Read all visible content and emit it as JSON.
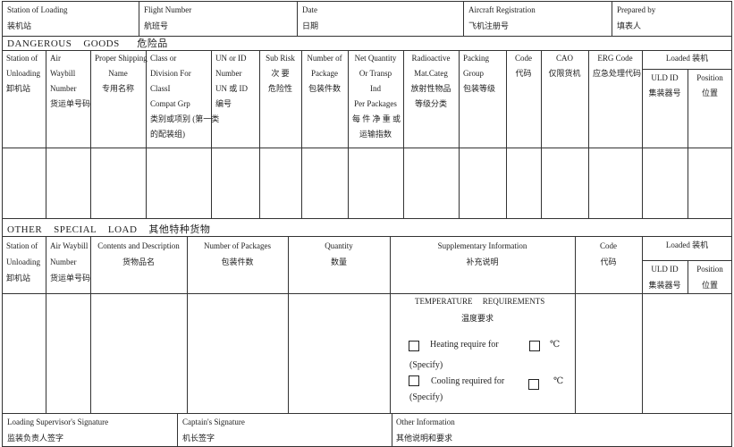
{
  "header": {
    "station_of_loading": [
      "Station of Loading",
      "装机站"
    ],
    "flight_number": [
      "Flight Number",
      "航班号"
    ],
    "date": [
      "Date",
      "日期"
    ],
    "aircraft_registration": [
      "Aircraft Registration",
      "飞机注册号"
    ],
    "prepared_by": [
      "Prepared by",
      "填表人"
    ]
  },
  "dangerous_goods": {
    "title": "DANGEROUS    GOODS      危险品",
    "columns": [
      [
        "Station of",
        "Unloading",
        "卸机站"
      ],
      [
        "Air",
        "Waybill",
        "Number",
        "货运单号码"
      ],
      [
        "Proper Shipping",
        "Name",
        "专用名称"
      ],
      [
        "Class           or",
        "Division   For",
        "ClassI",
        "Compat Grp",
        "类别或项别 (第一类",
        "的配装组)"
      ],
      [
        "UN or ID",
        "Number",
        "UN 或 ID",
        "编号"
      ],
      [
        "Sub Risk",
        "次   要",
        "危险性"
      ],
      [
        "Number of",
        "Package",
        "包装件数"
      ],
      [
        "Net  Quantity",
        "Or Transp",
        "Ind",
        "Per Packages",
        "每 件 净 重 或",
        "运输指数"
      ],
      [
        "Radioactive",
        "Mat.Categ",
        "放射性物品",
        "等级分类"
      ],
      [
        "Packing",
        "Group",
        "包装等级"
      ],
      [
        "Code",
        "代码"
      ],
      [
        "CAO",
        "仅限货机"
      ],
      [
        "ERG Code",
        "应急处理代码"
      ]
    ],
    "loaded": "Loaded   装机",
    "uld_id": [
      "ULD ID",
      "集装器号"
    ],
    "position": [
      "Position",
      "位置"
    ]
  },
  "other_special_load": {
    "title": "OTHER    SPECIAL    LOAD    其他特种货物",
    "columns": [
      [
        "Station of",
        "Unloading",
        "卸机站"
      ],
      [
        "Air Waybill",
        "Number",
        "货运单号码"
      ],
      [
        "Contents and Description",
        "货物品名"
      ],
      [
        "Number of Packages",
        "包装件数"
      ],
      [
        "Quantity",
        "数量"
      ],
      [
        "Supplementary Information",
        "补充说明"
      ],
      [
        "Code",
        "代码"
      ]
    ],
    "loaded": "Loaded   装机",
    "uld_id": [
      "ULD ID",
      "集装器号"
    ],
    "position": [
      "Position",
      "位置"
    ],
    "temperature": {
      "title": "TEMPERATURE     REQUIREMENTS",
      "subtitle": "温度要求",
      "heating": "Heating require for",
      "cooling": "Cooling required for",
      "specify": "(Specify)",
      "unit": "℃"
    }
  },
  "footer": {
    "loading_supervisor": [
      "Loading Supervisor's Signature",
      "监装负责人签字"
    ],
    "captain": [
      "Captain's Signature",
      "机长签字"
    ],
    "other_info": [
      "Other Information",
      "其他说明和要求"
    ]
  }
}
